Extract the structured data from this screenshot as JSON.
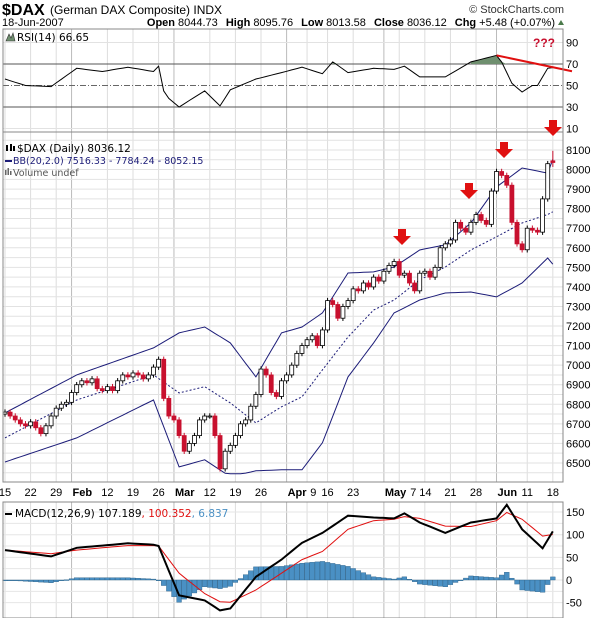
{
  "header": {
    "symbol": "$DAX",
    "name": "(German DAX Composite) INDX",
    "copyright": "© StockCharts.com",
    "date": "18-Jun-2007",
    "open_label": "Open",
    "open": "8044.73",
    "high_label": "High",
    "high": "8095.76",
    "low_label": "Low",
    "low": "8013.58",
    "close_label": "Close",
    "close": "8036.12",
    "chg_label": "Chg",
    "chg": "+5.48 (+0.07%)",
    "up_color": "#4a7a4a"
  },
  "rsi_panel": {
    "legend": "RSI(14) 66.65",
    "annotation": "???",
    "icon": "mountain-icon"
  },
  "price_panel": {
    "legend_price": "$DAX (Daily) 8036.12",
    "legend_bb": "BB(20,2.0) 7516.33 - 7784.24 - 8052.15",
    "legend_volume": "Volume undef",
    "icon_price": "candlestick-icon",
    "icon_volume": "volume-bars-icon"
  },
  "macd_panel": {
    "legend_name": "MACD(12,26,9) 107.189",
    "legend_signal": ", 100.352",
    "legend_hist": ", 6.837"
  },
  "colors": {
    "down_candle": "#c8102e",
    "bands": "#1c1c78",
    "annotation_red": "#e01010",
    "histogram": "#4a90c4",
    "signal": "#e01010",
    "macd": "#000000",
    "rsi_overbought_fill": "#6f8f6f"
  },
  "chart_data": [
    {
      "type": "candlestick",
      "title": "$DAX (Daily)",
      "yticks": [
        8100,
        8000,
        7900,
        7800,
        7700,
        7600,
        7500,
        7400,
        7300,
        7200,
        7100,
        7000,
        6900,
        6800,
        6700,
        6600,
        6500
      ],
      "ylim": [
        6440,
        8190
      ],
      "dates": [
        "01-15",
        "01-16",
        "01-17",
        "01-18",
        "01-19",
        "01-22",
        "01-23",
        "01-24",
        "01-25",
        "01-26",
        "01-29",
        "01-30",
        "01-31",
        "02-01",
        "02-02",
        "02-05",
        "02-06",
        "02-07",
        "02-08",
        "02-09",
        "02-12",
        "02-13",
        "02-14",
        "02-15",
        "02-16",
        "02-19",
        "02-20",
        "02-21",
        "02-22",
        "02-23",
        "02-26",
        "02-27",
        "02-28",
        "03-01",
        "03-02",
        "03-05",
        "03-06",
        "03-07",
        "03-08",
        "03-09",
        "03-12",
        "03-13",
        "03-14",
        "03-15",
        "03-16",
        "03-19",
        "03-20",
        "03-21",
        "03-22",
        "03-23",
        "03-26",
        "03-27",
        "03-28",
        "03-29",
        "03-30",
        "04-02",
        "04-03",
        "04-04",
        "04-05",
        "04-10",
        "04-11",
        "04-12",
        "04-13",
        "04-16",
        "04-17",
        "04-18",
        "04-19",
        "04-20",
        "04-23",
        "04-24",
        "04-25",
        "04-26",
        "04-27",
        "04-30",
        "05-02",
        "05-03",
        "05-04",
        "05-07",
        "05-08",
        "05-09",
        "05-10",
        "05-11",
        "05-14",
        "05-15",
        "05-16",
        "05-17",
        "05-18",
        "05-21",
        "05-22",
        "05-23",
        "05-24",
        "05-25",
        "05-28",
        "05-29",
        "05-30",
        "05-31",
        "06-01",
        "06-04",
        "06-05",
        "06-06",
        "06-07",
        "06-08",
        "06-11",
        "06-12",
        "06-13",
        "06-14",
        "06-15",
        "06-18"
      ],
      "closes": [
        6760,
        6740,
        6720,
        6700,
        6690,
        6710,
        6680,
        6650,
        6690,
        6740,
        6780,
        6800,
        6810,
        6860,
        6900,
        6920,
        6910,
        6930,
        6880,
        6870,
        6890,
        6870,
        6920,
        6950,
        6940,
        6960,
        6950,
        6930,
        6950,
        6990,
        7030,
        6830,
        6740,
        6720,
        6640,
        6560,
        6600,
        6640,
        6720,
        6740,
        6740,
        6640,
        6470,
        6560,
        6590,
        6640,
        6700,
        6720,
        6790,
        6850,
        6980,
        6950,
        6860,
        6840,
        6920,
        6950,
        7000,
        7060,
        7100,
        7130,
        7150,
        7100,
        7180,
        7330,
        7310,
        7240,
        7300,
        7330,
        7390,
        7380,
        7420,
        7400,
        7450,
        7430,
        7480,
        7510,
        7530,
        7460,
        7470,
        7420,
        7380,
        7470,
        7480,
        7450,
        7500,
        7600,
        7620,
        7640,
        7730,
        7700,
        7680,
        7730,
        7770,
        7740,
        7720,
        7890,
        7990,
        7970,
        7920,
        7730,
        7620,
        7590,
        7700,
        7690,
        7680,
        7850,
        8030,
        8036.12
      ],
      "last": {
        "open": 8044.73,
        "high": 8095.76,
        "low": 8013.58,
        "close": 8036.12
      },
      "bollinger": [
        [
          "01-15",
          6756,
          6628,
          6505
        ],
        [
          "02-02",
          6950,
          6822,
          6628
        ],
        [
          "02-23",
          7088,
          6950,
          6822
        ],
        [
          "03-02",
          7165,
          6858,
          6480
        ],
        [
          "03-09",
          7195,
          6890,
          6516
        ],
        [
          "03-16",
          7114,
          6807,
          6430
        ],
        [
          "03-23",
          6940,
          6705,
          6460
        ],
        [
          "03-30",
          7165,
          6787,
          6465
        ],
        [
          "04-05",
          7195,
          6838,
          6465
        ],
        [
          "04-13",
          7267,
          6976,
          6603
        ],
        [
          "04-20",
          7471,
          7144,
          6940
        ],
        [
          "04-27",
          7477,
          7282,
          7114
        ],
        [
          "05-04",
          7502,
          7333,
          7267
        ],
        [
          "05-11",
          7589,
          7436,
          7333
        ],
        [
          "05-18",
          7615,
          7502,
          7369
        ],
        [
          "05-25",
          7727,
          7589,
          7374
        ],
        [
          "06-01",
          7911,
          7656,
          7349
        ],
        [
          "06-08",
          8008,
          7727,
          7420
        ],
        [
          "06-15",
          7982,
          7770,
          7548
        ],
        [
          "06-18",
          8052.15,
          7784.24,
          7516.33
        ]
      ],
      "annotations": [
        "red down arrow 05-08",
        "red down arrow 05-25",
        "red down arrow 06-01",
        "red down arrow 06-18"
      ]
    },
    {
      "type": "line",
      "title": "RSI(14)",
      "yticks": [
        90,
        70,
        50,
        30,
        10
      ],
      "reference_lines": [
        70,
        50,
        30
      ],
      "values": [
        [
          "01-15",
          56
        ],
        [
          "01-19",
          50
        ],
        [
          "01-26",
          49
        ],
        [
          "02-02",
          66
        ],
        [
          "02-09",
          63
        ],
        [
          "02-16",
          67
        ],
        [
          "02-23",
          63
        ],
        [
          "02-26",
          68
        ],
        [
          "02-27",
          45
        ],
        [
          "02-28",
          38
        ],
        [
          "03-02",
          30
        ],
        [
          "03-09",
          45
        ],
        [
          "03-14",
          31
        ],
        [
          "03-16",
          46
        ],
        [
          "03-23",
          56
        ],
        [
          "03-30",
          62
        ],
        [
          "04-05",
          67
        ],
        [
          "04-13",
          61
        ],
        [
          "04-17",
          72
        ],
        [
          "04-20",
          62
        ],
        [
          "04-27",
          66
        ],
        [
          "05-04",
          65
        ],
        [
          "05-08",
          68
        ],
        [
          "05-11",
          58
        ],
        [
          "05-18",
          58
        ],
        [
          "05-25",
          72
        ],
        [
          "06-01",
          78
        ],
        [
          "06-04",
          72
        ],
        [
          "06-06",
          52
        ],
        [
          "06-08",
          44
        ],
        [
          "06-12",
          50
        ],
        [
          "06-13",
          50
        ],
        [
          "06-15",
          66
        ],
        [
          "06-18",
          66.65
        ]
      ],
      "trendline": [
        [
          "06-01",
          78
        ],
        [
          "06-18",
          67
        ]
      ]
    },
    {
      "type": "line+bar",
      "title": "MACD(12,26,9)",
      "yticks": [
        150,
        100,
        50,
        0,
        -50
      ],
      "macd_signal": [
        [
          "01-15",
          66,
          66
        ],
        [
          "01-26",
          52,
          58
        ],
        [
          "02-02",
          71,
          66
        ],
        [
          "02-09",
          76,
          71
        ],
        [
          "02-16",
          81,
          76
        ],
        [
          "02-23",
          78,
          76
        ],
        [
          "02-26",
          75,
          75
        ],
        [
          "03-02",
          -34,
          15
        ],
        [
          "03-09",
          -45,
          -30
        ],
        [
          "03-14",
          -67,
          -48
        ],
        [
          "03-16",
          -63,
          -49
        ],
        [
          "03-23",
          7,
          -22
        ],
        [
          "03-30",
          45,
          15
        ],
        [
          "04-05",
          82,
          45
        ],
        [
          "04-13",
          104,
          63
        ],
        [
          "04-20",
          142,
          112
        ],
        [
          "04-27",
          138,
          131
        ],
        [
          "05-04",
          136,
          134
        ],
        [
          "05-08",
          147,
          140
        ],
        [
          "05-11",
          127,
          136
        ],
        [
          "05-18",
          104,
          119
        ],
        [
          "05-25",
          127,
          118
        ],
        [
          "06-01",
          136,
          131
        ],
        [
          "06-05",
          166,
          149
        ],
        [
          "06-08",
          112,
          134
        ],
        [
          "06-14",
          70,
          97
        ],
        [
          "06-18",
          107.189,
          100.352
        ]
      ]
    }
  ],
  "x_axis": {
    "ticks": [
      {
        "label": "15",
        "date": "01-15"
      },
      {
        "label": "22",
        "date": "01-22"
      },
      {
        "label": "29",
        "date": "01-29"
      },
      {
        "label": "Feb",
        "date": "02-01",
        "month": true
      },
      {
        "label": "12",
        "date": "02-12"
      },
      {
        "label": "19",
        "date": "02-19"
      },
      {
        "label": "26",
        "date": "02-26"
      },
      {
        "label": "Mar",
        "date": "03-01",
        "month": true
      },
      {
        "label": "12",
        "date": "03-12"
      },
      {
        "label": "19",
        "date": "03-19"
      },
      {
        "label": "26",
        "date": "03-26"
      },
      {
        "label": "Apr",
        "date": "04-02",
        "month": true
      },
      {
        "label": "9",
        "date": "04-10"
      },
      {
        "label": "16",
        "date": "04-16"
      },
      {
        "label": "23",
        "date": "04-23"
      },
      {
        "label": "May",
        "date": "05-02",
        "month": true
      },
      {
        "label": "7",
        "date": "05-07"
      },
      {
        "label": "14",
        "date": "05-14"
      },
      {
        "label": "21",
        "date": "05-21"
      },
      {
        "label": "28",
        "date": "05-28"
      },
      {
        "label": "Jun",
        "date": "06-01",
        "month": true
      },
      {
        "label": "11",
        "date": "06-11"
      },
      {
        "label": "18",
        "date": "06-18"
      }
    ]
  }
}
